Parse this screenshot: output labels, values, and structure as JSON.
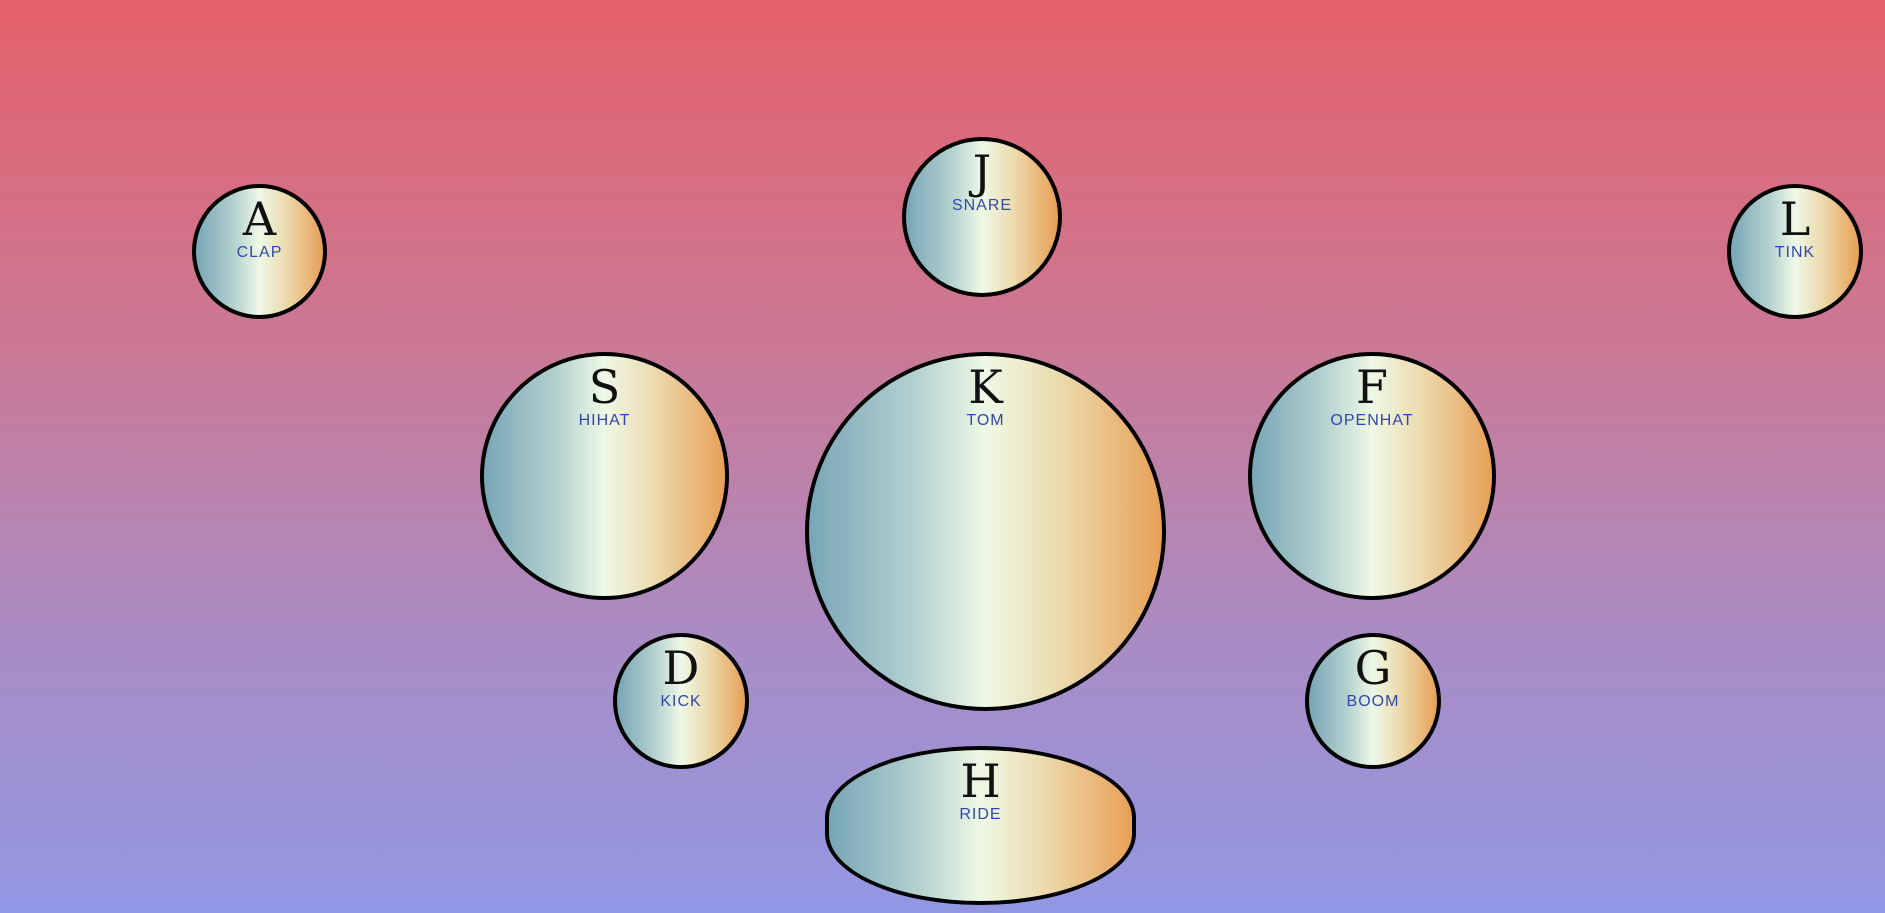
{
  "pads": {
    "a": {
      "key": "A",
      "sound": "CLAP"
    },
    "j": {
      "key": "J",
      "sound": "SNARE"
    },
    "l": {
      "key": "L",
      "sound": "TINK"
    },
    "s": {
      "key": "S",
      "sound": "HIHAT"
    },
    "k": {
      "key": "K",
      "sound": "TOM"
    },
    "f": {
      "key": "F",
      "sound": "OPENHAT"
    },
    "d": {
      "key": "D",
      "sound": "KICK"
    },
    "g": {
      "key": "G",
      "sound": "BOOM"
    },
    "h": {
      "key": "H",
      "sound": "RIDE"
    }
  },
  "colors": {
    "background_top": "#e5616a",
    "background_bottom": "#9297e3",
    "pad_left": "#78a6b6",
    "pad_center": "#eef8e6",
    "pad_right": "#e7a056",
    "pad_border": "#000000",
    "key_text": "#111111",
    "sound_text": "#3247a8"
  }
}
